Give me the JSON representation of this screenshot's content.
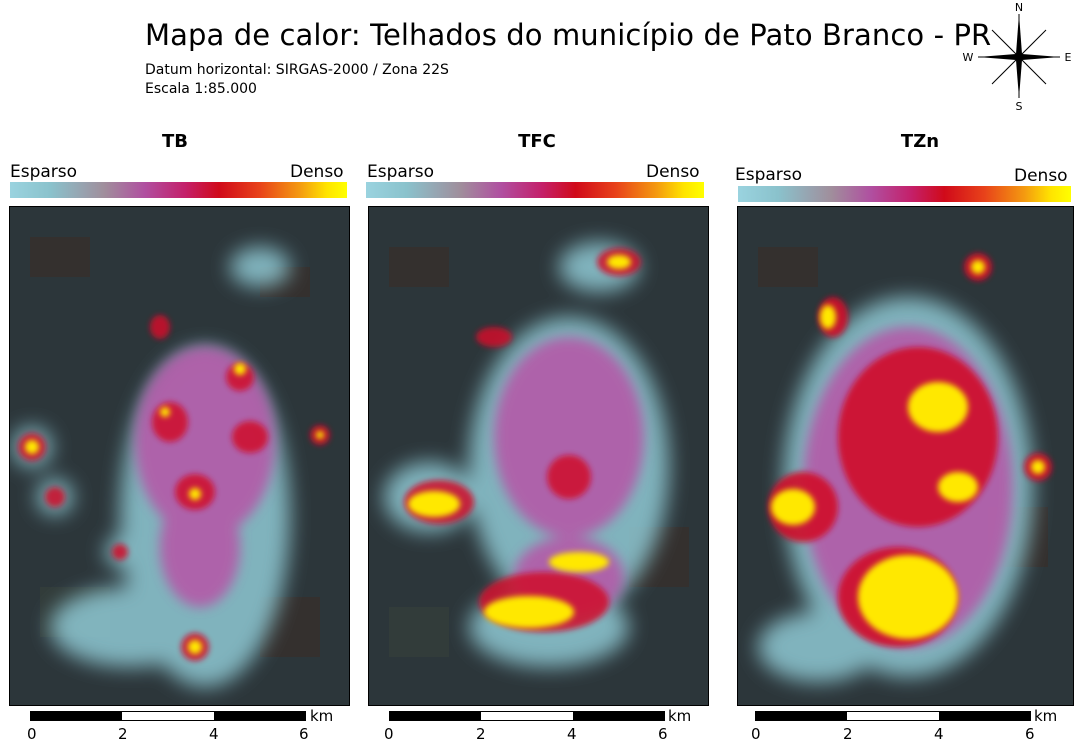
{
  "header": {
    "title": "Mapa de calor: Telhados do município de Pato Branco - PR",
    "datum": "Datum horizontal: SIRGAS-2000 / Zona 22S",
    "scale": "Escala 1:85.000"
  },
  "compass": {
    "n": "N",
    "s": "S",
    "e": "E",
    "w": "W"
  },
  "legend": {
    "low": "Esparso",
    "high": "Denso"
  },
  "scalebar": {
    "ticks": [
      "0",
      "2",
      "4",
      "6"
    ],
    "unit": "km"
  },
  "panels": [
    {
      "title": "TB"
    },
    {
      "title": "TFC"
    },
    {
      "title": "TZn"
    }
  ],
  "colors": {
    "ramp": [
      "#9ad3df",
      "#a08e9c",
      "#b04fa0",
      "#c4206a",
      "#d00a1a",
      "#f49a10",
      "#ffff00"
    ],
    "basemap": "#2a3338"
  }
}
